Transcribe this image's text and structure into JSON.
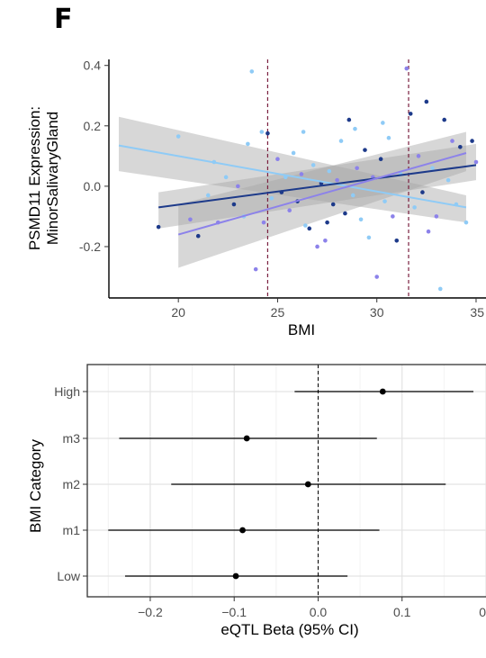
{
  "panel_label": "F",
  "chart_data": [
    {
      "type": "scatter",
      "xlabel": "BMI",
      "ylabel": [
        "PSMD11 Expression:",
        "MinorSalivaryGland"
      ],
      "xlim": [
        16.5,
        35.5
      ],
      "ylim": [
        -0.37,
        0.42
      ],
      "xticks": [
        "20",
        "25",
        "30",
        "35"
      ],
      "yticks": [
        "0.4",
        "0.2",
        "0.0",
        "-0.2"
      ],
      "vlines": [
        24.5,
        31.6
      ],
      "colors": {
        "light": "#8fcbf6",
        "dark": "#1d3a8a",
        "mid": "#8c82ea",
        "band": "#a6a6a6",
        "vline": "#7a1f3f"
      },
      "fits": [
        {
          "color": "light",
          "x": [
            17,
            34.5
          ],
          "y": [
            0.135,
            -0.07
          ],
          "ci_lo": [
            0.05,
            -0.12
          ],
          "ci_hi": [
            0.23,
            -0.03
          ]
        },
        {
          "color": "dark",
          "x": [
            19,
            35
          ],
          "y": [
            -0.07,
            0.07
          ],
          "ci_lo": [
            -0.14,
            0.02
          ],
          "ci_hi": [
            -0.02,
            0.14
          ]
        },
        {
          "color": "mid",
          "x": [
            20,
            34.5
          ],
          "y": [
            -0.16,
            0.11
          ],
          "ci_lo": [
            -0.27,
            0.05
          ],
          "ci_hi": [
            -0.06,
            0.18
          ]
        }
      ],
      "points": [
        {
          "x": 19.0,
          "y": -0.135,
          "c": "dark"
        },
        {
          "x": 20.0,
          "y": 0.165,
          "c": "light"
        },
        {
          "x": 20.6,
          "y": -0.11,
          "c": "mid"
        },
        {
          "x": 21.0,
          "y": -0.165,
          "c": "dark"
        },
        {
          "x": 21.5,
          "y": -0.03,
          "c": "light"
        },
        {
          "x": 21.8,
          "y": 0.08,
          "c": "light"
        },
        {
          "x": 22.0,
          "y": -0.12,
          "c": "mid"
        },
        {
          "x": 22.4,
          "y": 0.03,
          "c": "light"
        },
        {
          "x": 22.8,
          "y": -0.06,
          "c": "dark"
        },
        {
          "x": 23.0,
          "y": 0.0,
          "c": "mid"
        },
        {
          "x": 23.3,
          "y": -0.1,
          "c": "light"
        },
        {
          "x": 23.5,
          "y": 0.14,
          "c": "light"
        },
        {
          "x": 23.7,
          "y": 0.38,
          "c": "light"
        },
        {
          "x": 23.9,
          "y": -0.275,
          "c": "mid"
        },
        {
          "x": 24.2,
          "y": 0.18,
          "c": "light"
        },
        {
          "x": 24.3,
          "y": -0.12,
          "c": "mid"
        },
        {
          "x": 24.5,
          "y": 0.175,
          "c": "dark"
        },
        {
          "x": 24.7,
          "y": -0.04,
          "c": "light"
        },
        {
          "x": 25.0,
          "y": 0.09,
          "c": "mid"
        },
        {
          "x": 25.2,
          "y": -0.02,
          "c": "dark"
        },
        {
          "x": 25.4,
          "y": 0.03,
          "c": "light"
        },
        {
          "x": 25.6,
          "y": -0.08,
          "c": "mid"
        },
        {
          "x": 25.8,
          "y": 0.11,
          "c": "light"
        },
        {
          "x": 26.0,
          "y": -0.05,
          "c": "dark"
        },
        {
          "x": 26.2,
          "y": 0.04,
          "c": "mid"
        },
        {
          "x": 26.4,
          "y": -0.13,
          "c": "light"
        },
        {
          "x": 26.6,
          "y": -0.14,
          "c": "dark"
        },
        {
          "x": 26.8,
          "y": 0.07,
          "c": "light"
        },
        {
          "x": 27.0,
          "y": -0.2,
          "c": "mid"
        },
        {
          "x": 27.2,
          "y": 0.01,
          "c": "dark"
        },
        {
          "x": 27.4,
          "y": -0.18,
          "c": "mid"
        },
        {
          "x": 27.6,
          "y": 0.05,
          "c": "light"
        },
        {
          "x": 27.8,
          "y": -0.06,
          "c": "dark"
        },
        {
          "x": 28.0,
          "y": 0.02,
          "c": "mid"
        },
        {
          "x": 28.2,
          "y": 0.15,
          "c": "light"
        },
        {
          "x": 28.4,
          "y": -0.09,
          "c": "dark"
        },
        {
          "x": 28.6,
          "y": 0.22,
          "c": "dark"
        },
        {
          "x": 28.8,
          "y": -0.03,
          "c": "light"
        },
        {
          "x": 29.0,
          "y": 0.06,
          "c": "mid"
        },
        {
          "x": 29.2,
          "y": -0.11,
          "c": "light"
        },
        {
          "x": 29.4,
          "y": 0.12,
          "c": "dark"
        },
        {
          "x": 29.6,
          "y": -0.17,
          "c": "light"
        },
        {
          "x": 29.8,
          "y": 0.03,
          "c": "mid"
        },
        {
          "x": 30.0,
          "y": -0.3,
          "c": "mid"
        },
        {
          "x": 30.2,
          "y": 0.09,
          "c": "dark"
        },
        {
          "x": 30.4,
          "y": -0.05,
          "c": "light"
        },
        {
          "x": 30.6,
          "y": 0.16,
          "c": "light"
        },
        {
          "x": 30.8,
          "y": -0.1,
          "c": "mid"
        },
        {
          "x": 31.0,
          "y": -0.18,
          "c": "dark"
        },
        {
          "x": 31.2,
          "y": 0.04,
          "c": "light"
        },
        {
          "x": 31.5,
          "y": 0.39,
          "c": "mid"
        },
        {
          "x": 31.7,
          "y": 0.24,
          "c": "dark"
        },
        {
          "x": 31.9,
          "y": -0.07,
          "c": "light"
        },
        {
          "x": 32.1,
          "y": 0.1,
          "c": "mid"
        },
        {
          "x": 32.3,
          "y": -0.02,
          "c": "dark"
        },
        {
          "x": 32.5,
          "y": 0.28,
          "c": "dark"
        },
        {
          "x": 32.8,
          "y": 0.06,
          "c": "light"
        },
        {
          "x": 33.0,
          "y": -0.1,
          "c": "mid"
        },
        {
          "x": 33.2,
          "y": -0.34,
          "c": "light"
        },
        {
          "x": 33.4,
          "y": 0.22,
          "c": "dark"
        },
        {
          "x": 33.6,
          "y": 0.02,
          "c": "light"
        },
        {
          "x": 33.8,
          "y": 0.15,
          "c": "mid"
        },
        {
          "x": 34.0,
          "y": -0.06,
          "c": "light"
        },
        {
          "x": 34.2,
          "y": 0.13,
          "c": "dark"
        },
        {
          "x": 34.5,
          "y": -0.12,
          "c": "light"
        },
        {
          "x": 34.8,
          "y": 0.15,
          "c": "dark"
        },
        {
          "x": 35.0,
          "y": 0.08,
          "c": "mid"
        },
        {
          "x": 26.3,
          "y": 0.18,
          "c": "light"
        },
        {
          "x": 27.5,
          "y": -0.12,
          "c": "dark"
        },
        {
          "x": 28.9,
          "y": 0.19,
          "c": "light"
        },
        {
          "x": 30.3,
          "y": 0.21,
          "c": "light"
        },
        {
          "x": 32.6,
          "y": -0.15,
          "c": "mid"
        }
      ]
    },
    {
      "type": "forest",
      "xlabel": "eQTL Beta (95% CI)",
      "ylabel": "BMI Category",
      "xlim": [
        -0.275,
        0.2
      ],
      "xticks": [
        -0.2,
        -0.1,
        0.0,
        0.1
      ],
      "xtick_labels": [
        "−0.2",
        "−0.1",
        "0.0",
        "0.1"
      ],
      "edge_tick_label": "0",
      "refline": 0,
      "categories": [
        "High",
        "m3",
        "m2",
        "m1",
        "Low"
      ],
      "estimates": [
        0.077,
        -0.085,
        -0.012,
        -0.09,
        -0.098
      ],
      "ci_lo": [
        -0.028,
        -0.237,
        -0.175,
        -0.25,
        -0.23
      ],
      "ci_hi": [
        0.185,
        0.07,
        0.152,
        0.073,
        0.035
      ]
    }
  ]
}
